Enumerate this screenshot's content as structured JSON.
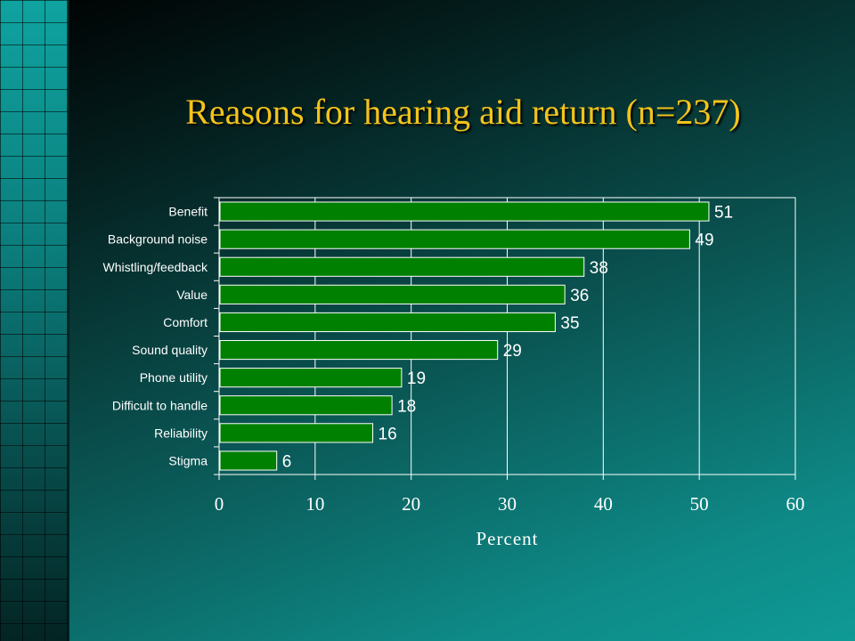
{
  "colors": {
    "title": "#f2c41a",
    "bar": "#008000",
    "bar_border": "#ffffff",
    "text": "#ffffff"
  },
  "chart_data": {
    "type": "bar",
    "orientation": "horizontal",
    "title": "Reasons for hearing aid return (n=237)",
    "xlabel": "Percent",
    "ylabel": "",
    "categories": [
      "Benefit",
      "Background noise",
      "Whistling/feedback",
      "Value",
      "Comfort",
      "Sound quality",
      "Phone utility",
      "Difficult to handle",
      "Reliability",
      "Stigma"
    ],
    "values": [
      51,
      49,
      38,
      36,
      35,
      29,
      19,
      18,
      16,
      6
    ],
    "xlim": [
      0,
      60
    ],
    "xticks": [
      "0",
      "10",
      "20",
      "30",
      "40",
      "50",
      "60"
    ],
    "grid": "vertical",
    "legend": "none",
    "data_labels": true
  }
}
